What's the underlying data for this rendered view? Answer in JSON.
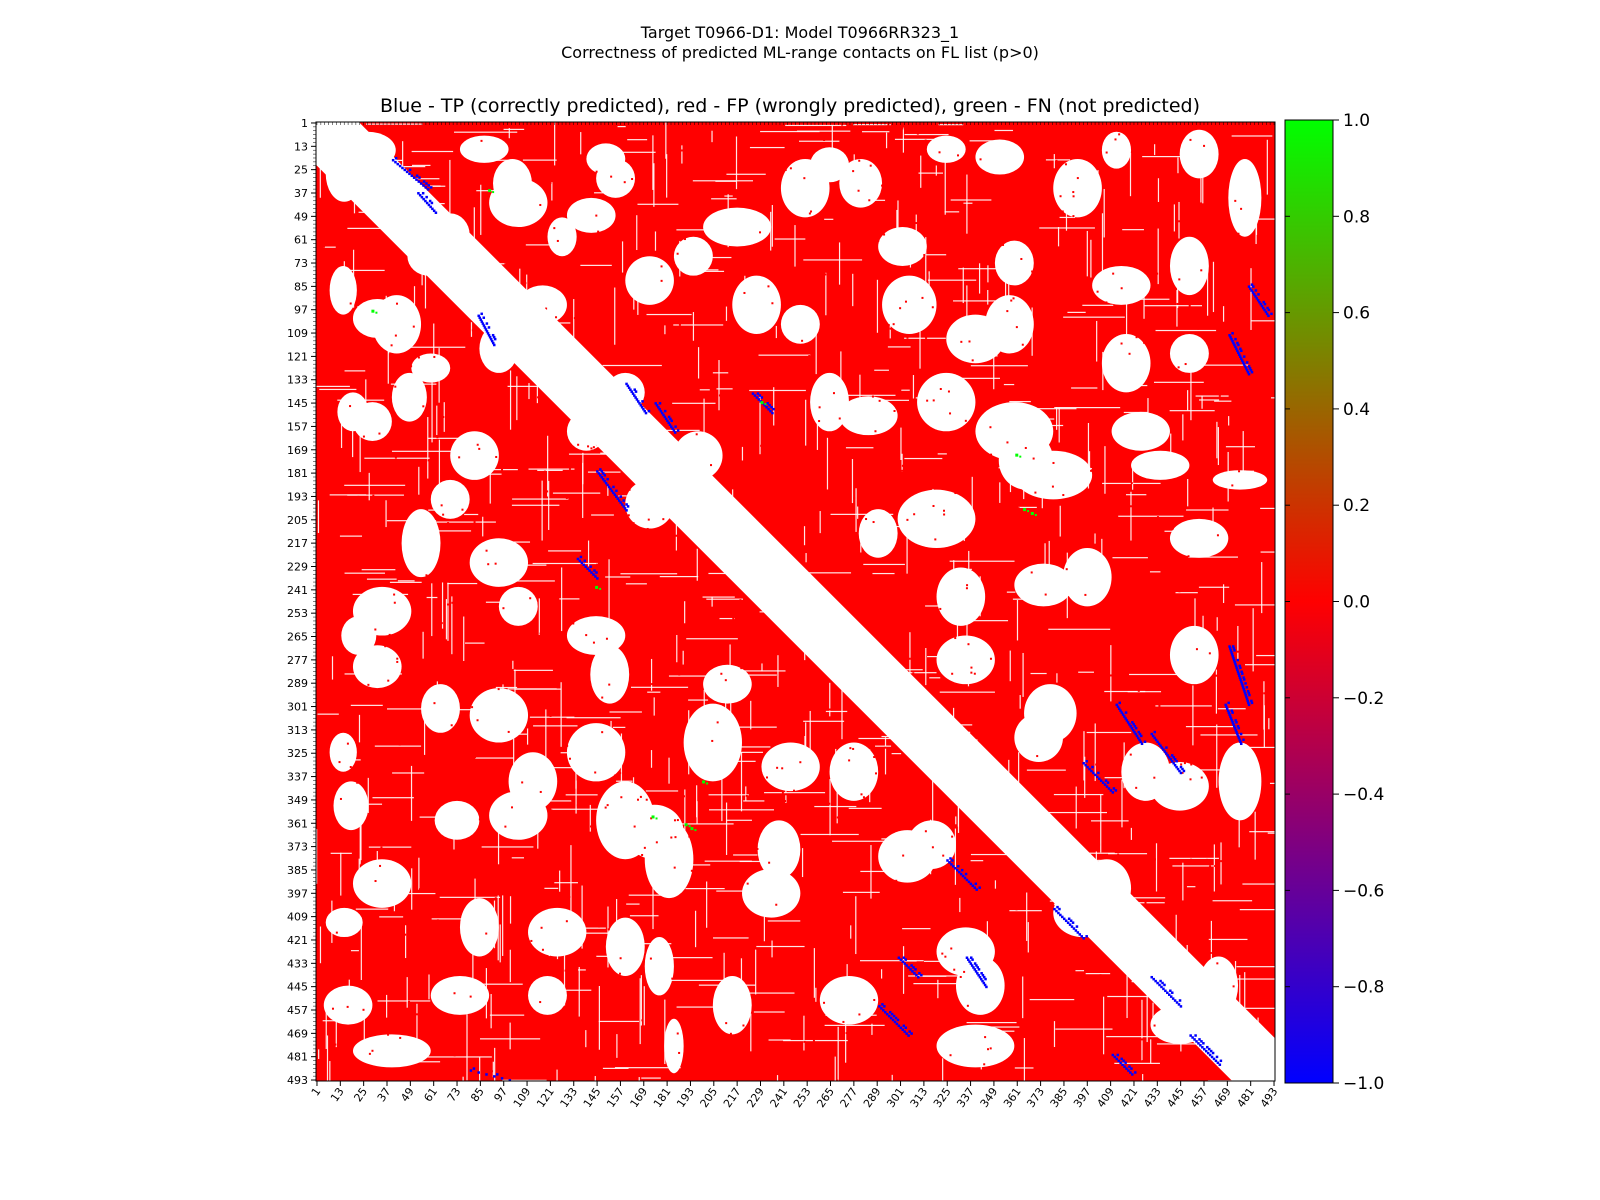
{
  "chart_data": {
    "type": "heatmap",
    "suptitle_line1": "Target T0966-D1: Model T0966RR323_1",
    "suptitle_line2": "Correctness of predicted ML-range contacts on FL list (p>0)",
    "title": "Blue - TP (correctly predicted), red - FP (wrongly predicted), green - FN (not predicted)",
    "xlabel": "",
    "ylabel": "",
    "residue_range": [
      1,
      493
    ],
    "x_ticks": [
      1,
      13,
      25,
      37,
      49,
      61,
      73,
      85,
      97,
      109,
      121,
      133,
      145,
      157,
      169,
      181,
      193,
      205,
      217,
      229,
      241,
      253,
      265,
      277,
      289,
      301,
      313,
      325,
      337,
      349,
      361,
      373,
      385,
      397,
      409,
      421,
      433,
      445,
      457,
      469,
      481,
      493
    ],
    "y_ticks": [
      1,
      13,
      25,
      37,
      49,
      61,
      73,
      85,
      97,
      109,
      121,
      133,
      145,
      157,
      169,
      181,
      193,
      205,
      217,
      229,
      241,
      253,
      265,
      277,
      289,
      301,
      313,
      325,
      337,
      349,
      361,
      373,
      385,
      397,
      409,
      421,
      433,
      445,
      457,
      469,
      481,
      493
    ],
    "colorbar": {
      "range": [
        -1.0,
        1.0
      ],
      "ticks": [
        "1.0",
        "0.8",
        "0.6",
        "0.4",
        "0.2",
        "0.0",
        "−0.2",
        "−0.4",
        "−0.6",
        "−0.8",
        "−1.0"
      ],
      "colors": {
        "top": "#00ff00",
        "middle": "#ff0000",
        "bottom": "#0000ff"
      }
    },
    "category_colors": {
      "TP": "#0000ff",
      "FP": "#ff0000",
      "FN": "#00ff00",
      "none": "#ffffff"
    },
    "white_regions": [
      [
        6,
        25,
        13,
        42
      ],
      [
        8,
        22,
        75,
        100
      ],
      [
        12,
        28,
        140,
        160
      ],
      [
        14,
        32,
        255,
        275
      ],
      [
        8,
        22,
        315,
        335
      ],
      [
        10,
        28,
        340,
        365
      ],
      [
        6,
        25,
        405,
        420
      ],
      [
        5,
        30,
        445,
        465
      ],
      [
        25,
        38,
        30,
        48
      ],
      [
        40,
        58,
        130,
        155
      ],
      [
        45,
        65,
        200,
        235
      ],
      [
        30,
        55,
        90,
        120
      ],
      [
        48,
        70,
        60,
        80
      ],
      [
        60,
        80,
        185,
        205
      ],
      [
        55,
        75,
        290,
        315
      ],
      [
        62,
        85,
        350,
        370
      ],
      [
        75,
        95,
        400,
        430
      ],
      [
        85,
        105,
        105,
        130
      ],
      [
        92,
        112,
        20,
        45
      ],
      [
        95,
        115,
        240,
        260
      ],
      [
        100,
        125,
        325,
        355
      ],
      [
        110,
        130,
        440,
        460
      ],
      [
        120,
        135,
        50,
        70
      ],
      [
        130,
        150,
        150,
        170
      ],
      [
        145,
        165,
        20,
        40
      ],
      [
        142,
        162,
        270,
        300
      ],
      [
        145,
        175,
        340,
        380
      ],
      [
        150,
        170,
        410,
        440
      ],
      [
        160,
        185,
        70,
        95
      ],
      [
        170,
        195,
        360,
        400
      ],
      [
        185,
        210,
        160,
        185
      ],
      [
        190,
        220,
        300,
        340
      ],
      [
        205,
        225,
        440,
        470
      ],
      [
        215,
        240,
        80,
        110
      ],
      [
        228,
        250,
        360,
        390
      ],
      [
        240,
        265,
        20,
        50
      ],
      [
        255,
        275,
        130,
        160
      ],
      [
        265,
        290,
        320,
        350
      ],
      [
        270,
        292,
        20,
        45
      ],
      [
        280,
        300,
        200,
        225
      ],
      [
        292,
        320,
        80,
        110
      ],
      [
        305,
        330,
        360,
        385
      ],
      [
        310,
        340,
        130,
        160
      ],
      [
        320,
        345,
        230,
        260
      ],
      [
        330,
        355,
        430,
        460
      ],
      [
        345,
        370,
        90,
        120
      ],
      [
        352,
        380,
        160,
        190
      ],
      [
        365,
        392,
        290,
        320
      ],
      [
        380,
        405,
        20,
        50
      ],
      [
        385,
        410,
        220,
        250
      ],
      [
        395,
        420,
        380,
        410
      ],
      [
        405,
        430,
        110,
        140
      ],
      [
        415,
        440,
        320,
        350
      ],
      [
        420,
        450,
        170,
        185
      ],
      [
        440,
        460,
        60,
        90
      ],
      [
        440,
        465,
        260,
        290
      ],
      [
        455,
        475,
        430,
        460
      ],
      [
        462,
        490,
        180,
        190
      ],
      [
        470,
        487,
        20,
        60
      ],
      [
        465,
        487,
        320,
        360
      ]
    ],
    "tp_segments": [
      [
        37,
        47,
        53,
        62
      ],
      [
        20,
        35,
        40,
        58
      ],
      [
        100,
        115,
        84,
        92
      ],
      [
        135,
        150,
        160,
        170
      ],
      [
        145,
        160,
        175,
        185
      ],
      [
        180,
        200,
        145,
        160
      ],
      [
        225,
        235,
        135,
        145
      ],
      [
        300,
        320,
        412,
        425
      ],
      [
        330,
        345,
        395,
        410
      ],
      [
        315,
        335,
        430,
        445
      ],
      [
        380,
        395,
        325,
        340
      ],
      [
        405,
        420,
        380,
        395
      ],
      [
        430,
        440,
        300,
        310
      ],
      [
        430,
        445,
        335,
        345
      ],
      [
        440,
        455,
        430,
        445
      ],
      [
        455,
        470,
        290,
        305
      ],
      [
        470,
        485,
        450,
        465
      ],
      [
        488,
        493,
        80,
        100
      ],
      [
        480,
        490,
        410,
        420
      ],
      [
        85,
        100,
        480,
        490
      ],
      [
        110,
        130,
        470,
        480
      ],
      [
        270,
        300,
        470,
        480
      ],
      [
        300,
        320,
        468,
        476
      ],
      [
        140,
        150,
        225,
        235
      ]
    ],
    "fn_points": [
      [
        172,
        361
      ],
      [
        200,
        365
      ],
      [
        202,
        369
      ],
      [
        358,
        174
      ],
      [
        362,
        191
      ],
      [
        364,
        194
      ],
      [
        36,
        90
      ],
      [
        145,
        230
      ],
      [
        98,
        30
      ],
      [
        240,
        145
      ],
      [
        340,
        200
      ]
    ]
  }
}
